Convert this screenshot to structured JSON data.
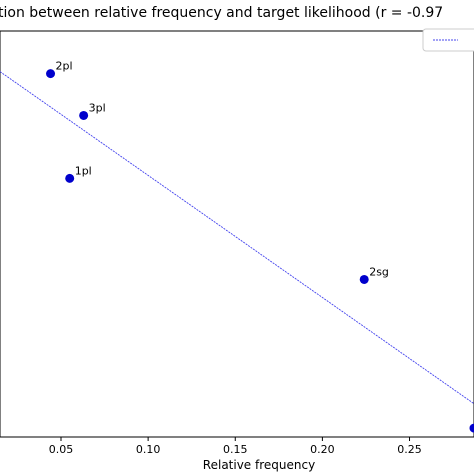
{
  "chart_data": {
    "type": "scatter",
    "title": "tion between relative frequency and target likelihood (r = -0.97",
    "xlabel": "Relative frequency",
    "ylabel": "",
    "xlim": [
      0.015,
      0.287
    ],
    "ylim": [
      0,
      1
    ],
    "xticks": [
      0.05,
      0.1,
      0.15,
      0.2,
      0.25
    ],
    "xtick_labels": [
      "0.05",
      "0.10",
      "0.15",
      "0.20",
      "0.25"
    ],
    "grid": false,
    "legend": {
      "placement": "top-right"
    },
    "colors": {
      "points": "#0000cc",
      "trend": "#4444ee"
    },
    "points": [
      {
        "label": "2pl",
        "x": 0.044,
        "y": 0.895
      },
      {
        "label": "3pl",
        "x": 0.063,
        "y": 0.792
      },
      {
        "label": "1pl",
        "x": 0.055,
        "y": 0.637
      },
      {
        "label": "2sg",
        "x": 0.224,
        "y": 0.388
      },
      {
        "label": "",
        "x": 0.287,
        "y": 0.022
      }
    ],
    "trendline": {
      "x": [
        0.015,
        0.287
      ],
      "y": [
        0.9,
        0.082
      ]
    }
  }
}
